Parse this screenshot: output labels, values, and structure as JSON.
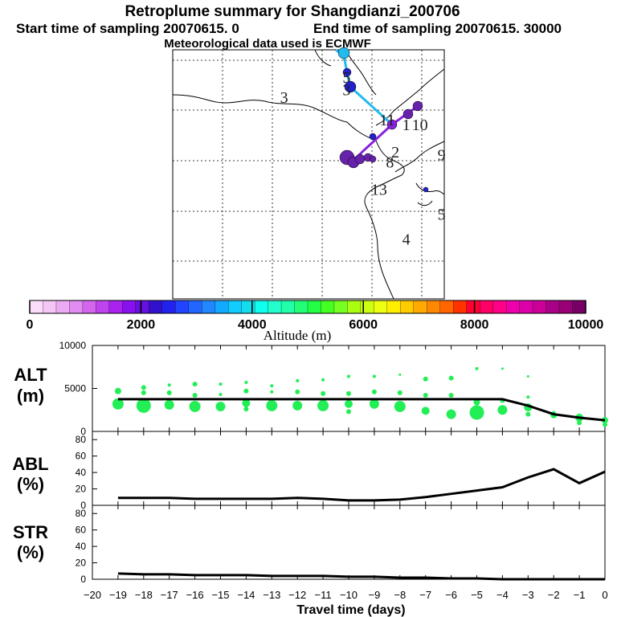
{
  "title": "Retroplume summary for Shangdianzi_200706",
  "subtitle_start": "Start time of sampling 20070615.     0",
  "subtitle_end": "End time of sampling 20070615. 30000",
  "subtitle_met": "Meteorological data used is ECMWF",
  "colors": {
    "alt_dots": "#22ee55",
    "path_cyan": "#22bbee",
    "path_purple": "#8822dd",
    "marker_dark": "#6622aa",
    "marker_blue": "#2222cc"
  },
  "map": {
    "day_labels": [
      {
        "text": "3",
        "lon": 0.41,
        "lat": 0.9
      },
      {
        "text": "3",
        "lon": 0.64,
        "lat": 0.93
      },
      {
        "text": "11",
        "lon": 0.79,
        "lat": 0.81
      },
      {
        "text": "1",
        "lon": 0.86,
        "lat": 0.79
      },
      {
        "text": "10",
        "lon": 0.91,
        "lat": 0.79
      },
      {
        "text": "9",
        "lon": 0.99,
        "lat": 0.67
      },
      {
        "text": "8",
        "lon": 0.8,
        "lat": 0.64
      },
      {
        "text": "2",
        "lon": 0.82,
        "lat": 0.68
      },
      {
        "text": "13",
        "lon": 0.76,
        "lat": 0.53
      },
      {
        "text": "5",
        "lon": 0.99,
        "lat": 0.43
      },
      {
        "text": "4",
        "lon": 0.86,
        "lat": 0.33
      },
      {
        "text": "5",
        "lon": 0.64,
        "lat": 0.98
      }
    ]
  },
  "colorbar": {
    "tick_labels": [
      "0",
      "2000",
      "4000",
      "6000",
      "8000",
      "10000"
    ],
    "label": "Altitude (m)",
    "colors": [
      "#fbdcfb",
      "#f3c6f3",
      "#ebaaf3",
      "#e08cf0",
      "#d466ee",
      "#c044ee",
      "#aa22ee",
      "#8811ee",
      "#6611dd",
      "#3311cc",
      "#2222ee",
      "#2244ff",
      "#2266ff",
      "#2288ff",
      "#11aaff",
      "#11ccff",
      "#11ddee",
      "#11ffee",
      "#22ffcc",
      "#22ffaa",
      "#22ff77",
      "#22ff44",
      "#44ff22",
      "#77ff22",
      "#aaff11",
      "#ccff11",
      "#eeff11",
      "#ffee00",
      "#ffcc00",
      "#ffaa00",
      "#ff8800",
      "#ff6600",
      "#ff3300",
      "#ff0033",
      "#ff0066",
      "#ff0088",
      "#ee00aa",
      "#dd00aa",
      "#cc0099",
      "#aa0088",
      "#990077",
      "#770066"
    ]
  },
  "chart_data": [
    {
      "type": "scatter",
      "panel_label_1": "ALT",
      "panel_label_2": "(m)",
      "ylim": [
        0,
        10000
      ],
      "y_ticks": [
        "0",
        "5000",
        "10000"
      ],
      "x": [
        -19,
        -18,
        -17,
        -16,
        -15,
        -14,
        -13,
        -12,
        -11,
        -10,
        -9,
        -8,
        -7,
        -6,
        -5,
        -4,
        -3,
        -2,
        -1,
        0
      ],
      "line_values": [
        3750,
        3750,
        3750,
        3750,
        3750,
        3750,
        3750,
        3750,
        3750,
        3750,
        3750,
        3750,
        3750,
        3750,
        3750,
        3750,
        3000,
        2000,
        1600,
        1300
      ],
      "scatter": [
        {
          "x": -19,
          "y": 3200,
          "r": 7
        },
        {
          "x": -19,
          "y": 4700,
          "r": 4
        },
        {
          "x": -18,
          "y": 3000,
          "r": 9
        },
        {
          "x": -18,
          "y": 4500,
          "r": 3
        },
        {
          "x": -18,
          "y": 5100,
          "r": 3
        },
        {
          "x": -17,
          "y": 3100,
          "r": 6
        },
        {
          "x": -17,
          "y": 4500,
          "r": 3
        },
        {
          "x": -17,
          "y": 5400,
          "r": 2
        },
        {
          "x": -16,
          "y": 2900,
          "r": 7
        },
        {
          "x": -16,
          "y": 4200,
          "r": 3
        },
        {
          "x": -16,
          "y": 5500,
          "r": 3
        },
        {
          "x": -15,
          "y": 2900,
          "r": 6
        },
        {
          "x": -15,
          "y": 4300,
          "r": 2
        },
        {
          "x": -15,
          "y": 5500,
          "r": 2
        },
        {
          "x": -14,
          "y": 3300,
          "r": 5
        },
        {
          "x": -14,
          "y": 2600,
          "r": 3
        },
        {
          "x": -14,
          "y": 4700,
          "r": 3
        },
        {
          "x": -14,
          "y": 5700,
          "r": 2
        },
        {
          "x": -13,
          "y": 3000,
          "r": 7
        },
        {
          "x": -13,
          "y": 4600,
          "r": 2
        },
        {
          "x": -13,
          "y": 5300,
          "r": 2
        },
        {
          "x": -12,
          "y": 3000,
          "r": 6
        },
        {
          "x": -12,
          "y": 4600,
          "r": 3
        },
        {
          "x": -12,
          "y": 5900,
          "r": 2
        },
        {
          "x": -11,
          "y": 3000,
          "r": 7
        },
        {
          "x": -11,
          "y": 4400,
          "r": 3
        },
        {
          "x": -11,
          "y": 6000,
          "r": 2
        },
        {
          "x": -10,
          "y": 3200,
          "r": 5
        },
        {
          "x": -10,
          "y": 2300,
          "r": 3
        },
        {
          "x": -10,
          "y": 4400,
          "r": 3
        },
        {
          "x": -10,
          "y": 6400,
          "r": 2
        },
        {
          "x": -9,
          "y": 3200,
          "r": 6
        },
        {
          "x": -9,
          "y": 4600,
          "r": 3
        },
        {
          "x": -9,
          "y": 6400,
          "r": 2
        },
        {
          "x": -8,
          "y": 2900,
          "r": 7
        },
        {
          "x": -8,
          "y": 4500,
          "r": 3
        },
        {
          "x": -8,
          "y": 6600,
          "r": 1.5
        },
        {
          "x": -7,
          "y": 2400,
          "r": 5
        },
        {
          "x": -7,
          "y": 4200,
          "r": 3
        },
        {
          "x": -7,
          "y": 6100,
          "r": 3
        },
        {
          "x": -6,
          "y": 2000,
          "r": 6
        },
        {
          "x": -6,
          "y": 4200,
          "r": 3
        },
        {
          "x": -6,
          "y": 6200,
          "r": 3
        },
        {
          "x": -5,
          "y": 2200,
          "r": 9
        },
        {
          "x": -5,
          "y": 3400,
          "r": 4
        },
        {
          "x": -5,
          "y": 7300,
          "r": 2
        },
        {
          "x": -4,
          "y": 2500,
          "r": 6
        },
        {
          "x": -4,
          "y": 3600,
          "r": 3
        },
        {
          "x": -4,
          "y": 7300,
          "r": 1.5
        },
        {
          "x": -3,
          "y": 2800,
          "r": 5
        },
        {
          "x": -3,
          "y": 2000,
          "r": 3
        },
        {
          "x": -3,
          "y": 4000,
          "r": 2
        },
        {
          "x": -3,
          "y": 6400,
          "r": 1.5
        },
        {
          "x": -2,
          "y": 1900,
          "r": 4
        },
        {
          "x": -2,
          "y": 2200,
          "r": 2
        },
        {
          "x": -1,
          "y": 1600,
          "r": 5
        },
        {
          "x": -1,
          "y": 1000,
          "r": 3
        },
        {
          "x": 0,
          "y": 1300,
          "r": 4
        },
        {
          "x": 0,
          "y": 800,
          "r": 3
        }
      ]
    },
    {
      "type": "line",
      "panel_label_1": "ABL",
      "panel_label_2": "(%)",
      "ylim": [
        0,
        90
      ],
      "y_ticks": [
        "0",
        "20",
        "40",
        "60",
        "80"
      ],
      "x": [
        -19,
        -18,
        -17,
        -16,
        -15,
        -14,
        -13,
        -12,
        -11,
        -10,
        -9,
        -8,
        -7,
        -6,
        -5,
        -4,
        -3,
        -2,
        -1,
        0
      ],
      "values": [
        9,
        9,
        9,
        8,
        8,
        8,
        8,
        9,
        8,
        6,
        6,
        7,
        10,
        14,
        18,
        22,
        34,
        44,
        27,
        41
      ]
    },
    {
      "type": "line",
      "panel_label_1": "STR",
      "panel_label_2": "(%)",
      "ylim": [
        0,
        90
      ],
      "y_ticks": [
        "0",
        "20",
        "40",
        "60",
        "80"
      ],
      "x": [
        -19,
        -18,
        -17,
        -16,
        -15,
        -14,
        -13,
        -12,
        -11,
        -10,
        -9,
        -8,
        -7,
        -6,
        -5,
        -4,
        -3,
        -2,
        -1,
        0
      ],
      "values": [
        7,
        6,
        6,
        5,
        5,
        5,
        4,
        4,
        4,
        3,
        3,
        2,
        2,
        1,
        1,
        0,
        0,
        0,
        0,
        0
      ]
    }
  ],
  "x_axis": {
    "tick_labels": [
      "−20",
      "−19",
      "−18",
      "−17",
      "−16",
      "−15",
      "−14",
      "−13",
      "−12",
      "−11",
      "−10",
      "−9",
      "−8",
      "−7",
      "−6",
      "−5",
      "−4",
      "−3",
      "−2",
      "−1",
      "0"
    ],
    "label": "Travel time (days)"
  }
}
